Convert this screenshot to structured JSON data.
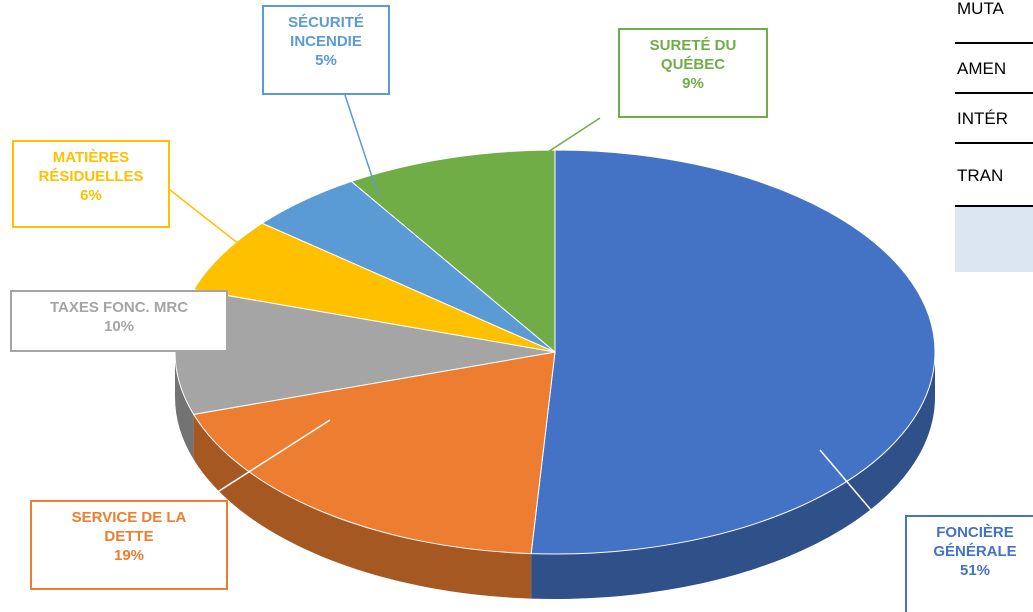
{
  "chart_data": {
    "type": "pie",
    "categories": [
      "FONCIÈRE GÉNÉRALE",
      "SERVICE DE LA DETTE",
      "TAXES FONC. MRC",
      "MATIÈRES RÉSIDUELLES",
      "SÉCURITÉ INCENDIE",
      "SURETÉ DU QUÉBEC"
    ],
    "values": [
      51,
      19,
      10,
      6,
      5,
      9
    ],
    "value_labels": [
      "51%",
      "19%",
      "10%",
      "6%",
      "5%",
      "9%"
    ],
    "colors": [
      "#4472c4",
      "#ed7d31",
      "#a5a5a5",
      "#ffc000",
      "#5b9bd5",
      "#70ad47"
    ]
  },
  "table": {
    "rows": [
      "MUTA",
      "AMEN",
      "INTÉR",
      "TRAN",
      ""
    ]
  }
}
